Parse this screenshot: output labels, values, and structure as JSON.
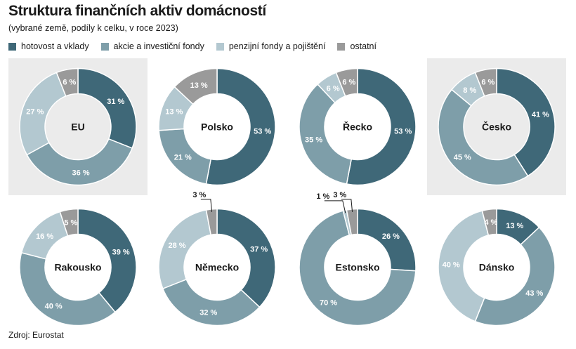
{
  "title": "Struktura finančních aktiv domácností",
  "subtitle": "(vybrané země, podíly k celku, v roce 2023)",
  "source": "Zdroj: Eurostat",
  "colors": {
    "hotovost": "#3f6878",
    "akcie": "#7e9ea9",
    "penzijni": "#b3c8d0",
    "ostatni": "#9a9a9a",
    "panel_bg": "#ebebeb"
  },
  "chart_data": {
    "type": "donut",
    "title": "Struktura finančních aktiv domácností",
    "subtitle": "(vybrané země, podíly k celku, v roce 2023)",
    "categories": [
      "hotovost a vklady",
      "akcie a investiční fondy",
      "penzijní fondy a pojištění",
      "ostatní"
    ],
    "unit": "%",
    "charts": [
      {
        "country": "EU",
        "highlight": true,
        "values": [
          31,
          36,
          27,
          6
        ],
        "labels": [
          "31 %",
          "36 %",
          "27 %",
          "6 %"
        ]
      },
      {
        "country": "Polsko",
        "highlight": false,
        "values": [
          53,
          21,
          13,
          13
        ],
        "labels": [
          "53 %",
          "21 %",
          "13 %",
          "13 %"
        ]
      },
      {
        "country": "Řecko",
        "highlight": false,
        "values": [
          53,
          35,
          6,
          6
        ],
        "labels": [
          "53 %",
          "35 %",
          "6 %",
          "6 %"
        ]
      },
      {
        "country": "Česko",
        "highlight": true,
        "values": [
          41,
          45,
          8,
          6
        ],
        "labels": [
          "41 %",
          "45 %",
          "8 %",
          "6 %"
        ]
      },
      {
        "country": "Rakousko",
        "highlight": false,
        "values": [
          39,
          40,
          16,
          5
        ],
        "labels": [
          "39 %",
          "40 %",
          "16 %",
          "5 %"
        ]
      },
      {
        "country": "Německo",
        "highlight": false,
        "values": [
          37,
          32,
          28,
          3
        ],
        "labels": [
          "37 %",
          "32 %",
          "28 %",
          "3 %"
        ]
      },
      {
        "country": "Estonsko",
        "highlight": false,
        "values": [
          26,
          70,
          1,
          3
        ],
        "labels": [
          "26 %",
          "70 %",
          "1 %",
          "3 %"
        ]
      },
      {
        "country": "Dánsko",
        "highlight": false,
        "values": [
          13,
          43,
          40,
          4
        ],
        "labels": [
          "13 %",
          "43 %",
          "40 %",
          "4 %"
        ]
      }
    ]
  }
}
